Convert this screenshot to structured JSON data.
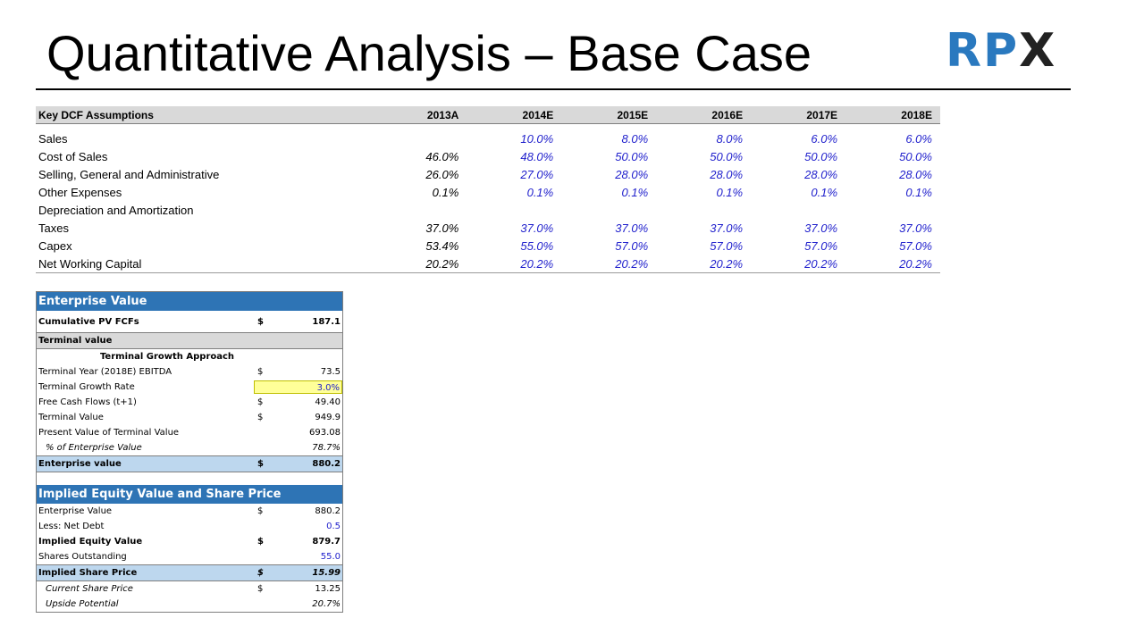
{
  "slide": {
    "title": "Quantitative Analysis – Base Case",
    "logo_text_main": "RP",
    "logo_text_x": "X"
  },
  "assumptions": {
    "header_label": "Key DCF Assumptions",
    "years": [
      "2013A",
      "2014E",
      "2015E",
      "2016E",
      "2017E",
      "2018E"
    ],
    "rows": [
      {
        "label": "Sales",
        "values": [
          "",
          "10.0%",
          "8.0%",
          "8.0%",
          "6.0%",
          "6.0%"
        ]
      },
      {
        "label": "Cost of Sales",
        "values": [
          "46.0%",
          "48.0%",
          "50.0%",
          "50.0%",
          "50.0%",
          "50.0%"
        ]
      },
      {
        "label": "Selling, General and Administrative",
        "values": [
          "26.0%",
          "27.0%",
          "28.0%",
          "28.0%",
          "28.0%",
          "28.0%"
        ]
      },
      {
        "label": "Other Expenses",
        "values": [
          "0.1%",
          "0.1%",
          "0.1%",
          "0.1%",
          "0.1%",
          "0.1%"
        ]
      },
      {
        "label": "Depreciation and Amortization",
        "values": [
          "",
          "",
          "",
          "",
          "",
          ""
        ]
      },
      {
        "label": "Taxes",
        "values": [
          "37.0%",
          "37.0%",
          "37.0%",
          "37.0%",
          "37.0%",
          "37.0%"
        ]
      },
      {
        "label": "Capex",
        "values": [
          "53.4%",
          "55.0%",
          "57.0%",
          "57.0%",
          "57.0%",
          "57.0%"
        ]
      },
      {
        "label": "Net Working Capital",
        "values": [
          "20.2%",
          "20.2%",
          "20.2%",
          "20.2%",
          "20.2%",
          "20.2%"
        ]
      }
    ]
  },
  "enterprise_value": {
    "title": "Enterprise Value",
    "cum_pv_label": "Cumulative PV FCFs",
    "cum_pv_dollar": "$",
    "cum_pv_value": "187.1",
    "terminal_value_label": "Terminal value",
    "approach_label": "Terminal Growth Approach",
    "rows": [
      {
        "label": "Terminal Year (2018E) EBITDA",
        "dollar": "$",
        "value": "73.5"
      },
      {
        "label": "Terminal Growth Rate",
        "dollar": "",
        "value": "3.0%"
      },
      {
        "label": "Free Cash Flows (t+1)",
        "dollar": "$",
        "value": "49.40"
      },
      {
        "label": "Terminal Value",
        "dollar": "$",
        "value": "949.9"
      },
      {
        "label": "Present Value of Terminal Value",
        "dollar": "",
        "value": "693.08"
      },
      {
        "label": "% of Enterprise Value",
        "dollar": "",
        "value": "78.7%"
      }
    ],
    "ev_label": "Enterprise value",
    "ev_dollar": "$",
    "ev_value": "880.2"
  },
  "equity_value": {
    "title": "Implied Equity Value and Share Price",
    "rows": [
      {
        "label": "Enterprise Value",
        "dollar": "$",
        "value": "880.2"
      },
      {
        "label": "Less: Net Debt",
        "dollar": "",
        "value": "0.5"
      },
      {
        "label": "Implied Equity Value",
        "dollar": "$",
        "value": "879.7"
      },
      {
        "label": "Shares Outstanding",
        "dollar": "",
        "value": "55.0"
      },
      {
        "label": "Implied Share Price",
        "dollar": "$",
        "value": "15.99"
      },
      {
        "label": "Current Share Price",
        "dollar": "$",
        "value": "13.25"
      },
      {
        "label": "Upside Potential",
        "dollar": "",
        "value": "20.7%"
      }
    ]
  }
}
